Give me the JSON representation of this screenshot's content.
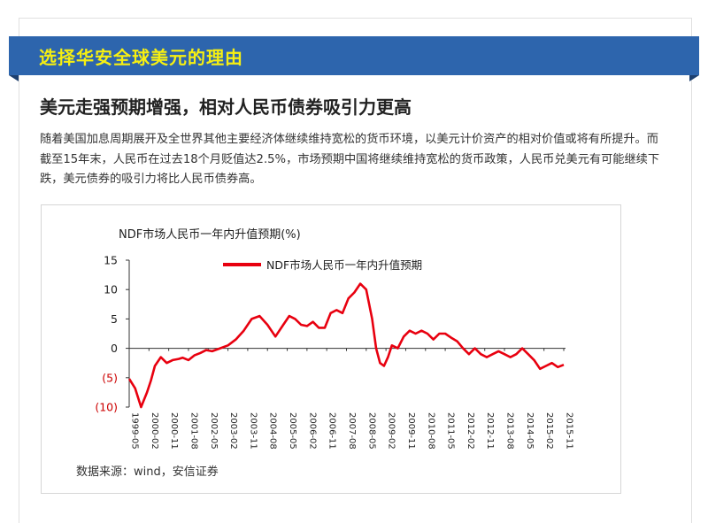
{
  "section": {
    "title": "选择华安全球美元的理由"
  },
  "article": {
    "heading": "美元走强预期增强，相对人民币债券吸引力更高",
    "paragraph": "随着美国加息周期展开及全世界其他主要经济体继续维持宽松的货币环境，以美元计价资产的相对价值或将有所提升。而截至15年末，人民币在过去18个月贬值达2.5%，市场预期中国将继续维持宽松的货币政策，人民币兑美元有可能继续下跌，美元债券的吸引力将比人民币债券高。",
    "source": "数据来源：wind，安信证券"
  },
  "colors": {
    "banner": "#2d65ad",
    "banner_text": "#f6ef12",
    "series": "#e8000f",
    "negative_label": "#cc0000"
  },
  "chart_data": {
    "type": "line",
    "title": "NDF市场人民币一年内升值预期(%)",
    "xlabel": "",
    "ylabel": "",
    "ylim": [
      -10,
      15
    ],
    "yticks": [
      15,
      10,
      5,
      0,
      -5,
      -10
    ],
    "ytick_labels": [
      "15",
      "10",
      "5",
      "0",
      "(5)",
      "(10)"
    ],
    "grid": false,
    "legend_position": "top-center",
    "x_tick_labels": [
      "1999-05",
      "2000-02",
      "2000-11",
      "2001-08",
      "2002-05",
      "2003-02",
      "2003-11",
      "2004-08",
      "2005-05",
      "2006-02",
      "2006-11",
      "2007-08",
      "2008-05",
      "2009-02",
      "2009-11",
      "2010-08",
      "2011-05",
      "2012-02",
      "2012-11",
      "2013-08",
      "2014-05",
      "2015-02",
      "2015-11"
    ],
    "series": [
      {
        "name": "NDF市场人民币一年内升值预期",
        "x": [
          0,
          0.3,
          0.6,
          0.9,
          1.1,
          1.3,
          1.6,
          1.9,
          2.2,
          2.5,
          2.7,
          3.0,
          3.3,
          3.6,
          3.9,
          4.2,
          4.6,
          5.0,
          5.4,
          5.8,
          6.2,
          6.6,
          7.0,
          7.4,
          7.8,
          8.1,
          8.4,
          8.7,
          9.0,
          9.3,
          9.6,
          9.9,
          10.2,
          10.5,
          10.8,
          11.1,
          11.4,
          11.7,
          12.0,
          12.3,
          12.5,
          12.7,
          12.9,
          13.1,
          13.3,
          13.6,
          13.9,
          14.2,
          14.5,
          14.8,
          15.1,
          15.4,
          15.7,
          16.0,
          16.3,
          16.6,
          16.9,
          17.2,
          17.5,
          17.8,
          18.1,
          18.4,
          18.7,
          19.0,
          19.3,
          19.6,
          19.9,
          20.2,
          20.5,
          20.8,
          21.1,
          21.4,
          21.7,
          22.0
        ],
        "y": [
          -5.2,
          -6.8,
          -10,
          -7.5,
          -5.5,
          -3,
          -1.5,
          -2.5,
          -2,
          -1.8,
          -1.6,
          -2,
          -1.2,
          -0.8,
          -0.3,
          -0.5,
          0,
          0.5,
          1.5,
          3,
          5,
          5.5,
          4,
          2,
          4,
          5.5,
          5,
          4,
          3.8,
          4.5,
          3.5,
          3.5,
          6,
          6.5,
          6,
          8.5,
          9.5,
          11,
          10,
          5,
          0,
          -2.5,
          -3,
          -1.5,
          0.5,
          0,
          2,
          3,
          2.5,
          3,
          2.5,
          1.5,
          2.5,
          2.5,
          1.8,
          1.2,
          0,
          -1,
          0,
          -1,
          -1.5,
          -1,
          -0.5,
          -1,
          -1.5,
          -1,
          0,
          -1,
          -2,
          -3.5,
          -3,
          -2.5,
          -3.2,
          -2.8
        ]
      }
    ]
  }
}
